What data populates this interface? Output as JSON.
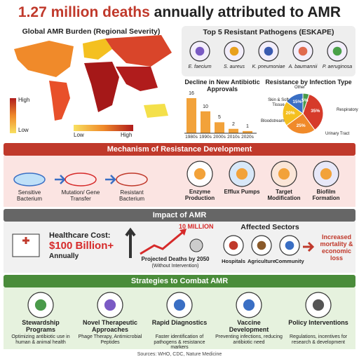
{
  "header": {
    "title_highlight": "1.27 million deaths",
    "title_rest": "annually attributed to AMR"
  },
  "map": {
    "title": "Global AMR Burden (Regional Severity)",
    "legend_high": "High",
    "legend_low": "Low",
    "scale_low": "Low",
    "scale_high": "High"
  },
  "pathogens": {
    "title": "Top 5 Resistant Pathogens (ESKAPE)",
    "items": [
      "E. faecium",
      "S. aureus",
      "K. pneumoniae",
      "A. baumannii",
      "P. aeruginosa"
    ]
  },
  "chart_data": [
    {
      "type": "bar",
      "title": "Decline in New Antibiotic Approvals",
      "categories": [
        "1980s",
        "1990s",
        "2000s",
        "2010s",
        "2020s"
      ],
      "values": [
        16,
        10,
        5,
        2,
        1
      ],
      "color": "#f2a23a"
    },
    {
      "type": "pie",
      "title": "Resistance by Infection Type",
      "categories": [
        "Respiratory",
        "Urinary Tract",
        "Bloodstream",
        "Skin & Soft Tissue",
        "Other"
      ],
      "values": [
        35,
        25,
        20,
        15,
        5
      ],
      "value_labels": [
        "35%",
        "25%",
        "20%",
        "15%",
        "5%"
      ],
      "colors": [
        "#d63a2a",
        "#f08a2a",
        "#f4c020",
        "#3a6fc4",
        "#4a9a4a"
      ]
    }
  ],
  "mechanism": {
    "title": "Mechanism of Resistance Development",
    "steps": [
      "Sensitive Bacterium",
      "Mutation/ Gene Transfer",
      "Resistant Bacterium"
    ],
    "types": [
      "Enzyme Production",
      "Efflux Pumps",
      "Target Modification",
      "Biofilm Formation"
    ]
  },
  "impact": {
    "title": "Impact of AMR",
    "cost_label": "Healthcare Cost:",
    "cost_value": "$100 Billion+",
    "cost_period": "Annually",
    "deaths_label": "10 MILLION",
    "deaths_caption": "Projected Deaths by 2050",
    "deaths_note": "(Without Intervention)",
    "sectors_title": "Affected Sectors",
    "sectors": [
      "Hospitals",
      "Agriculture",
      "Community"
    ],
    "outcome": "Increased mortality & economic loss"
  },
  "strategies": {
    "title": "Strategies to Combat AMR",
    "items": [
      {
        "name": "Stewardship Programs",
        "desc": "Optimizing antibiotic use in human & animal health"
      },
      {
        "name": "Novel Therapeutic Approaches",
        "desc": "Phage Therapy, Antimicrobial Peptides"
      },
      {
        "name": "Rapid Diagnostics",
        "desc": "Faster identification of pathogens & resistance markers"
      },
      {
        "name": "Vaccine Development",
        "desc": "Preventing infections, reducing antibiotic need"
      },
      {
        "name": "Policy Interventions",
        "desc": "Regulations, incentives for research & development"
      }
    ]
  },
  "footer": "Sources: WHO, CDC, Nature Medicine"
}
